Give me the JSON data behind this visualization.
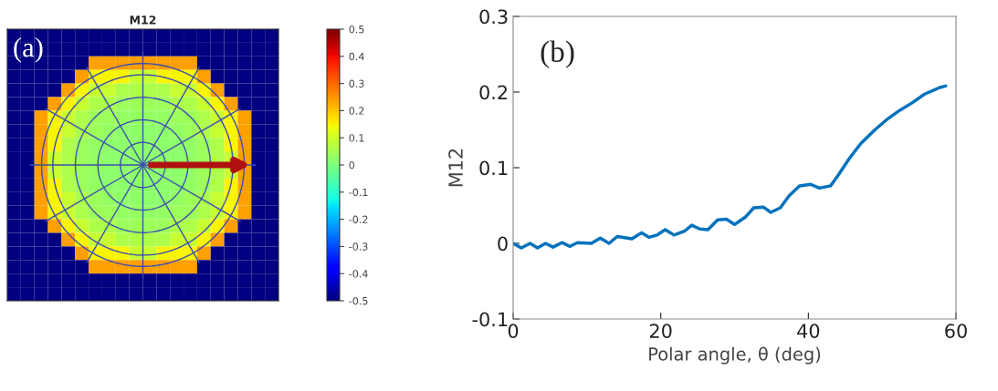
{
  "chart_data": [
    {
      "type": "heatmap",
      "title": "M12",
      "annotations": [
        "(a)"
      ],
      "categories": [
        null,
        null,
        null,
        null,
        null,
        null,
        null,
        null,
        null,
        null,
        null,
        null,
        null,
        null,
        null,
        null,
        null,
        null,
        null,
        null
      ],
      "y_categories": [
        null,
        null,
        null,
        null,
        null,
        null,
        null,
        null,
        null,
        null,
        null,
        null,
        null,
        null,
        null,
        null,
        null,
        null,
        null,
        null
      ],
      "cells": [
        [
          -0.5,
          -0.5,
          -0.5,
          -0.5,
          -0.5,
          -0.5,
          -0.5,
          -0.5,
          -0.5,
          -0.5,
          -0.5,
          -0.5,
          -0.5,
          -0.5,
          -0.5,
          -0.5,
          -0.5,
          -0.5,
          -0.5,
          -0.5
        ],
        [
          -0.5,
          -0.5,
          -0.5,
          -0.5,
          -0.5,
          -0.5,
          -0.5,
          -0.5,
          -0.5,
          -0.5,
          -0.5,
          -0.5,
          -0.5,
          -0.5,
          -0.5,
          -0.5,
          -0.5,
          -0.5,
          -0.5,
          -0.5
        ],
        [
          -0.5,
          -0.5,
          -0.5,
          -0.5,
          -0.5,
          -0.5,
          0.24,
          0.24,
          0.24,
          0.24,
          0.24,
          0.24,
          0.24,
          0.24,
          -0.5,
          -0.5,
          -0.5,
          -0.5,
          -0.5,
          -0.5
        ],
        [
          -0.5,
          -0.5,
          -0.5,
          -0.5,
          -0.5,
          0.24,
          0.15,
          0.15,
          0.15,
          0.09,
          0.09,
          0.15,
          0.15,
          0.15,
          0.24,
          -0.5,
          -0.5,
          -0.5,
          -0.5,
          -0.5
        ],
        [
          -0.5,
          -0.5,
          -0.5,
          -0.5,
          0.24,
          0.15,
          0.09,
          0.09,
          0.06,
          0.06,
          0.06,
          0.06,
          0.09,
          0.09,
          0.15,
          0.24,
          -0.5,
          -0.5,
          -0.5,
          -0.5
        ],
        [
          -0.5,
          -0.5,
          -0.5,
          0.24,
          0.15,
          0.09,
          0.06,
          0.06,
          0.04,
          0.04,
          0.04,
          0.04,
          0.06,
          0.06,
          0.09,
          0.15,
          0.24,
          -0.5,
          -0.5,
          -0.5
        ],
        [
          -0.5,
          -0.5,
          0.24,
          0.15,
          0.09,
          0.06,
          0.04,
          0.04,
          0.03,
          0.03,
          0.03,
          0.03,
          0.04,
          0.04,
          0.06,
          0.09,
          0.15,
          0.24,
          -0.5,
          -0.5
        ],
        [
          -0.5,
          -0.5,
          0.24,
          0.15,
          0.09,
          0.06,
          0.04,
          0.03,
          0.02,
          0.02,
          0.02,
          0.02,
          0.03,
          0.04,
          0.06,
          0.09,
          0.15,
          0.24,
          -0.5,
          -0.5
        ],
        [
          -0.5,
          -0.5,
          0.24,
          0.15,
          0.06,
          0.04,
          0.03,
          0.02,
          0.02,
          0.02,
          0.02,
          0.02,
          0.02,
          0.03,
          0.04,
          0.06,
          0.15,
          0.24,
          -0.5,
          -0.5
        ],
        [
          -0.5,
          -0.5,
          0.24,
          0.09,
          0.06,
          0.04,
          0.03,
          0.02,
          0.02,
          0.02,
          0.02,
          0.02,
          0.02,
          0.03,
          0.04,
          0.06,
          0.09,
          0.24,
          -0.5,
          -0.5
        ],
        [
          -0.5,
          -0.5,
          0.24,
          0.09,
          0.06,
          0.04,
          0.03,
          0.02,
          0.02,
          0.02,
          0.02,
          0.02,
          0.02,
          0.03,
          0.04,
          0.06,
          0.09,
          0.24,
          -0.5,
          -0.5
        ],
        [
          -0.5,
          -0.5,
          0.24,
          0.15,
          0.06,
          0.04,
          0.03,
          0.02,
          0.02,
          0.02,
          0.02,
          0.02,
          0.02,
          0.03,
          0.04,
          0.06,
          0.15,
          0.24,
          -0.5,
          -0.5
        ],
        [
          -0.5,
          -0.5,
          0.24,
          0.15,
          0.09,
          0.06,
          0.04,
          0.03,
          0.02,
          0.02,
          0.02,
          0.02,
          0.03,
          0.04,
          0.06,
          0.09,
          0.15,
          0.24,
          -0.5,
          -0.5
        ],
        [
          -0.5,
          -0.5,
          0.24,
          0.15,
          0.09,
          0.06,
          0.04,
          0.04,
          0.03,
          0.03,
          0.03,
          0.03,
          0.04,
          0.04,
          0.06,
          0.09,
          0.15,
          0.24,
          -0.5,
          -0.5
        ],
        [
          -0.5,
          -0.5,
          -0.5,
          0.24,
          0.15,
          0.09,
          0.06,
          0.06,
          0.04,
          0.04,
          0.04,
          0.04,
          0.06,
          0.06,
          0.09,
          0.15,
          0.24,
          -0.5,
          -0.5,
          -0.5
        ],
        [
          -0.5,
          -0.5,
          -0.5,
          -0.5,
          0.24,
          0.15,
          0.09,
          0.09,
          0.06,
          0.06,
          0.06,
          0.06,
          0.09,
          0.09,
          0.15,
          0.24,
          -0.5,
          -0.5,
          -0.5,
          -0.5
        ],
        [
          -0.5,
          -0.5,
          -0.5,
          -0.5,
          -0.5,
          0.24,
          0.15,
          0.15,
          0.15,
          0.09,
          0.09,
          0.15,
          0.15,
          0.15,
          0.24,
          -0.5,
          -0.5,
          -0.5,
          -0.5,
          -0.5
        ],
        [
          -0.5,
          -0.5,
          -0.5,
          -0.5,
          -0.5,
          -0.5,
          0.24,
          0.24,
          0.24,
          0.24,
          0.24,
          0.24,
          0.24,
          0.24,
          -0.5,
          -0.5,
          -0.5,
          -0.5,
          -0.5,
          -0.5
        ],
        [
          -0.5,
          -0.5,
          -0.5,
          -0.5,
          -0.5,
          -0.5,
          -0.5,
          -0.5,
          -0.5,
          -0.5,
          -0.5,
          -0.5,
          -0.5,
          -0.5,
          -0.5,
          -0.5,
          -0.5,
          -0.5,
          -0.5,
          -0.5
        ],
        [
          -0.5,
          -0.5,
          -0.5,
          -0.5,
          -0.5,
          -0.5,
          -0.5,
          -0.5,
          -0.5,
          -0.5,
          -0.5,
          -0.5,
          -0.5,
          -0.5,
          -0.5,
          -0.5,
          -0.5,
          -0.5,
          -0.5,
          -0.5
        ]
      ],
      "clim": [
        -0.5,
        0.5
      ],
      "cticks": [
        -0.5,
        -0.4,
        -0.3,
        -0.2,
        -0.1,
        0,
        0.1,
        0.2,
        0.3,
        0.4,
        0.5
      ]
    },
    {
      "type": "line",
      "annotations": [
        "(b)"
      ],
      "xlabel": "Polar angle, θ (deg)",
      "ylabel": "M12",
      "xlim": [
        0,
        60
      ],
      "xticks": [
        0,
        20,
        40,
        60
      ],
      "ylim": [
        -0.1,
        0.3
      ],
      "yticks": [
        -0.1,
        0,
        0.1,
        0.2,
        0.3
      ],
      "grid": false,
      "series": [
        {
          "color": "#0072bd",
          "x": [
            0,
            1.1,
            2.3,
            3.3,
            4.4,
            5.4,
            6.6,
            7.7,
            8.7,
            10.6,
            11.8,
            13.0,
            14.1,
            16.1,
            17.4,
            18.4,
            19.5,
            20.6,
            21.8,
            23.2,
            24.2,
            25.3,
            26.4,
            27.7,
            28.9,
            30.0,
            31.5,
            32.6,
            33.9,
            34.9,
            36.2,
            37.4,
            38.8,
            40.3,
            41.5,
            43.0,
            44.1,
            45.6,
            47.1,
            49.0,
            50.8,
            52.4,
            54.1,
            55.7,
            57.8,
            58.6
          ],
          "values": [
            0,
            -0.006,
            0,
            -0.006,
            0,
            -0.005,
            0.001,
            -0.004,
            0.001,
            0,
            0.007,
            0,
            0.009,
            0.006,
            0.014,
            0.008,
            0.011,
            0.018,
            0.011,
            0.016,
            0.024,
            0.019,
            0.018,
            0.031,
            0.032,
            0.025,
            0.035,
            0.047,
            0.048,
            0.041,
            0.047,
            0.063,
            0.076,
            0.078,
            0.073,
            0.076,
            0.091,
            0.113,
            0.132,
            0.15,
            0.165,
            0.176,
            0.186,
            0.197,
            0.206,
            0.208
          ]
        }
      ]
    }
  ]
}
